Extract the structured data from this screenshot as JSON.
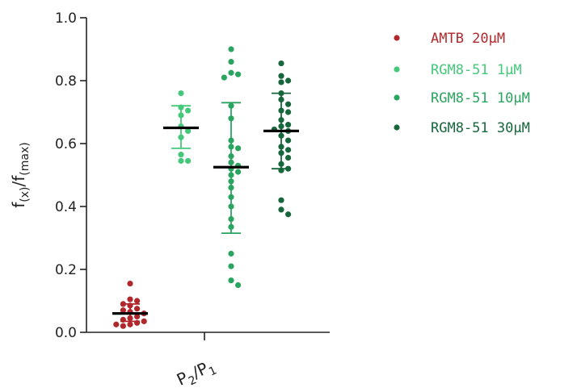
{
  "chart_data": {
    "type": "scatter",
    "ylabel_main": "f",
    "ylabel_sub1": "(x)",
    "ylabel_sep": "/f",
    "ylabel_sub2": "(max)",
    "xlabel_p2": "P",
    "xlabel_p2_sub": "2",
    "xlabel_sep": "/P",
    "xlabel_p1_sub": "1",
    "ylim": [
      0,
      1.0
    ],
    "yticks": [
      "0.0",
      "0.2",
      "0.4",
      "0.6",
      "0.8",
      "1.0"
    ],
    "grid": false,
    "legend_position": "top-right",
    "series": [
      {
        "name": "AMTB 20µM",
        "color": "#b0282b",
        "mean": 0.06,
        "error_low": 0.035,
        "error_high": 0.09,
        "values": [
          0.155,
          0.105,
          0.1,
          0.09,
          0.085,
          0.075,
          0.07,
          0.065,
          0.06,
          0.05,
          0.045,
          0.04,
          0.035,
          0.03,
          0.025,
          0.025,
          0.02
        ]
      },
      {
        "name": "RGM8-51 1µM",
        "color": "#44c97a",
        "mean": 0.65,
        "error_low": 0.585,
        "error_high": 0.72,
        "values": [
          0.76,
          0.715,
          0.705,
          0.69,
          0.655,
          0.64,
          0.62,
          0.565,
          0.545,
          0.545
        ]
      },
      {
        "name": "RGM8-51 10µM",
        "color": "#2aa560",
        "mean": 0.525,
        "error_low": 0.315,
        "error_high": 0.73,
        "values": [
          0.9,
          0.86,
          0.825,
          0.82,
          0.81,
          0.72,
          0.68,
          0.61,
          0.59,
          0.585,
          0.56,
          0.54,
          0.53,
          0.52,
          0.51,
          0.5,
          0.48,
          0.46,
          0.43,
          0.4,
          0.36,
          0.335,
          0.25,
          0.21,
          0.165,
          0.15
        ]
      },
      {
        "name": "RGM8-51 30µM",
        "color": "#17673d",
        "mean": 0.64,
        "error_low": 0.52,
        "error_high": 0.76,
        "values": [
          0.855,
          0.815,
          0.8,
          0.795,
          0.76,
          0.74,
          0.725,
          0.705,
          0.7,
          0.675,
          0.66,
          0.655,
          0.645,
          0.64,
          0.625,
          0.61,
          0.59,
          0.58,
          0.57,
          0.555,
          0.535,
          0.52,
          0.515,
          0.42,
          0.39,
          0.375
        ]
      }
    ]
  }
}
